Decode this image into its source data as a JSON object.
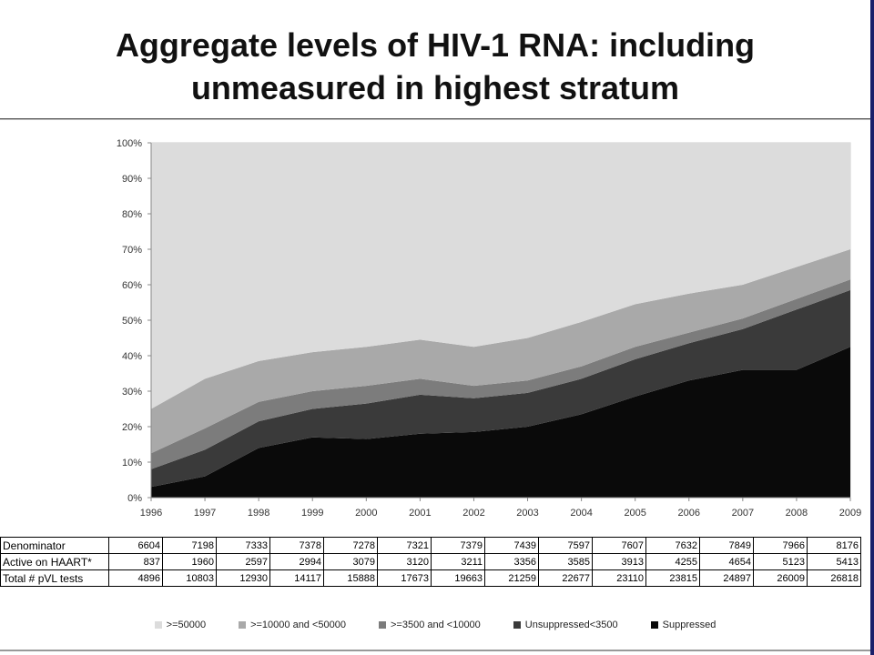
{
  "slide": {
    "title_line1": "Aggregate levels of HIV-1 RNA: including",
    "title_line2": "unmeasured in highest stratum"
  },
  "chart_data": {
    "type": "area",
    "stacked": true,
    "x": [
      "1996",
      "1997",
      "1998",
      "1999",
      "2000",
      "2001",
      "2002",
      "2003",
      "2004",
      "2005",
      "2006",
      "2007",
      "2008",
      "2009"
    ],
    "y_ticks": [
      "0%",
      "10%",
      "20%",
      "30%",
      "40%",
      "50%",
      "60%",
      "70%",
      "80%",
      "90%",
      "100%"
    ],
    "ylim": [
      0,
      100
    ],
    "grid": false,
    "legend_position": "bottom",
    "series": [
      {
        "name": "Suppressed",
        "color": "#0a0a0a",
        "values": [
          3,
          6,
          14,
          17,
          16.5,
          18,
          18.5,
          20,
          23.5,
          28.5,
          33,
          36,
          36,
          42.5
        ]
      },
      {
        "name": "Unsuppressed<3500",
        "color": "#3a3a3a",
        "values": [
          5,
          7.5,
          7.5,
          8,
          10,
          11,
          9.5,
          9.5,
          10,
          10.5,
          10.5,
          11.5,
          17,
          16
        ]
      },
      {
        "name": ">=3500 and <10000",
        "color": "#7c7c7c",
        "values": [
          4.5,
          6,
          5.5,
          5,
          5,
          4.5,
          3.5,
          3.5,
          3.5,
          3.5,
          3,
          3,
          3,
          3
        ]
      },
      {
        "name": ">=10000 and <50000",
        "color": "#a9a9a9",
        "values": [
          12.5,
          14,
          11.5,
          11,
          11,
          11,
          11,
          12,
          12.5,
          12,
          11,
          9.5,
          9,
          8.5
        ]
      },
      {
        "name": ">=50000",
        "color": "#dcdcdc",
        "values": [
          75,
          66.5,
          61.5,
          59,
          57.5,
          55.5,
          57.5,
          55,
          50.5,
          45.5,
          42.5,
          40,
          35,
          30
        ]
      }
    ]
  },
  "table": {
    "rows": [
      {
        "label": "Denominator",
        "values": [
          "6604",
          "7198",
          "7333",
          "7378",
          "7278",
          "7321",
          "7379",
          "7439",
          "7597",
          "7607",
          "7632",
          "7849",
          "7966",
          "8176"
        ]
      },
      {
        "label": "Active on HAART*",
        "values": [
          "837",
          "1960",
          "2597",
          "2994",
          "3079",
          "3120",
          "3211",
          "3356",
          "3585",
          "3913",
          "4255",
          "4654",
          "5123",
          "5413"
        ]
      },
      {
        "label": "Total # pVL tests",
        "values": [
          "4896",
          "10803",
          "12930",
          "14117",
          "15888",
          "17673",
          "19663",
          "21259",
          "22677",
          "23110",
          "23815",
          "24897",
          "26009",
          "26818"
        ]
      }
    ]
  },
  "legend": [
    {
      "label": ">=50000",
      "color": "#dcdcdc"
    },
    {
      "label": ">=10000 and <50000",
      "color": "#a9a9a9"
    },
    {
      "label": ">=3500 and <10000",
      "color": "#7c7c7c"
    },
    {
      "label": "Unsuppressed<3500",
      "color": "#3a3a3a"
    },
    {
      "label": "Suppressed",
      "color": "#0a0a0a"
    }
  ]
}
